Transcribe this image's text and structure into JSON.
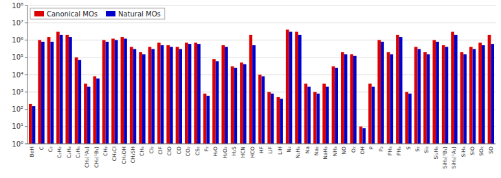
{
  "chart_data": {
    "type": "bar",
    "categories": [
      "BeH",
      "C",
      "C₂",
      "C₂H₂",
      "C₂H₄",
      "C₂H₆",
      "CH₂(³A₂)",
      "CH₂(¹B₁)",
      "CH₃",
      "CH₃Cl",
      "CH₃OH",
      "CH₃SH",
      "CH₄",
      "Cl₂",
      "ClF",
      "ClO",
      "CO",
      "CO₂",
      "CS₂",
      "F₂",
      "H₂O",
      "H₂O₂",
      "H₂S",
      "HCN",
      "HCO",
      "HF",
      "LiF",
      "LiH",
      "N₂",
      "N₂H₄",
      "Na",
      "Na₂",
      "NaH₃",
      "NH₃",
      "NO",
      "O₂",
      "OH",
      "P",
      "P₂",
      "PH₃",
      "PH₄",
      "S",
      "S₂",
      "Si₂",
      "Si₂H₆",
      "SiH₃(³B₁)",
      "SiH₃(¹A₁)",
      "SiH₄",
      "SiO",
      "SO₂",
      "SO"
    ],
    "series": [
      {
        "name": "Canonical MOs",
        "color": "#dd0000",
        "values": [
          200,
          1000000,
          1500000,
          3000000,
          2000000,
          100000,
          3000,
          8000,
          1000000,
          1200000,
          1500000,
          400000,
          200000,
          400000,
          700000,
          500000,
          400000,
          700000,
          700000,
          800,
          80000,
          500000,
          30000,
          50000,
          2000000,
          10000,
          1000,
          500,
          4000000,
          3000000,
          3000,
          1000,
          3000,
          30000,
          200000,
          150000,
          10,
          3000,
          1000000,
          200000,
          2000000,
          1000,
          400000,
          200000,
          1000000,
          500000,
          3000000,
          200000,
          400000,
          700000,
          2000000
        ]
      },
      {
        "name": "Natural MOs",
        "color": "#0000cc",
        "values": [
          150,
          800000,
          800000,
          2000000,
          1500000,
          70000,
          2000,
          6000,
          800000,
          1000000,
          1200000,
          300000,
          150000,
          300000,
          500000,
          400000,
          300000,
          600000,
          600000,
          600,
          60000,
          400000,
          25000,
          40000,
          500000,
          8000,
          800,
          400,
          3000000,
          2000000,
          2000,
          800,
          2000,
          25000,
          150000,
          120000,
          8,
          2000,
          800000,
          150000,
          1500000,
          800,
          300000,
          150000,
          800000,
          400000,
          2000000,
          150000,
          300000,
          500000,
          600000
        ]
      }
    ],
    "ylim": [
      1,
      100000000
    ],
    "yticks": [
      {
        "value": 1,
        "label": "10⁰"
      },
      {
        "value": 10,
        "label": "10¹"
      },
      {
        "value": 100,
        "label": "10²"
      },
      {
        "value": 1000,
        "label": "10³"
      },
      {
        "value": 10000,
        "label": "10⁴"
      },
      {
        "value": 100000,
        "label": "10⁵"
      },
      {
        "value": 1000000,
        "label": "10⁶"
      },
      {
        "value": 10000000,
        "label": "10⁷"
      },
      {
        "value": 100000000,
        "label": "10⁸"
      }
    ],
    "log": "y",
    "grid": true,
    "legend": "upper-left"
  }
}
